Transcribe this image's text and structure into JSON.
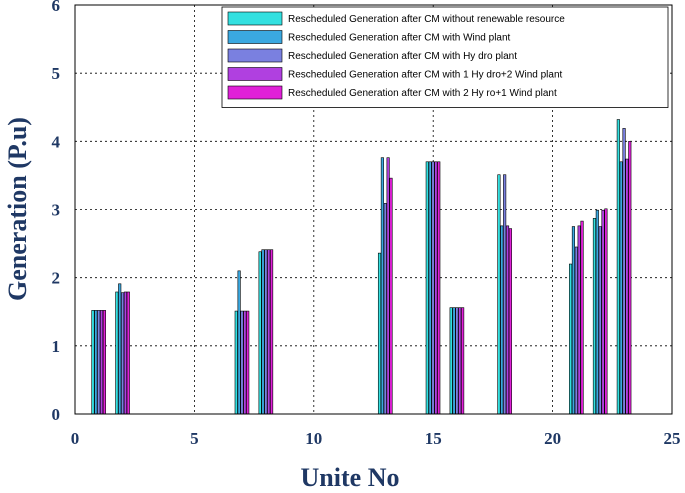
{
  "chart_data": {
    "type": "bar",
    "title": "",
    "xlabel": "Unite No",
    "ylabel": "Generation (P.u)",
    "xlim": [
      0,
      25
    ],
    "ylim": [
      0,
      6
    ],
    "x_ticks": [
      "0",
      "5",
      "10",
      "15",
      "20",
      "25"
    ],
    "y_ticks": [
      "0",
      "1",
      "2",
      "3",
      "4",
      "5",
      "6"
    ],
    "grid": true,
    "legend_position": "top-right",
    "units": [
      1,
      2,
      7,
      8,
      13,
      15,
      16,
      18,
      21,
      22,
      23
    ],
    "series": [
      {
        "name": "Rescheduled Generation after CM without renewable resource",
        "color": "#33e0e0",
        "values": [
          1.52,
          1.79,
          1.51,
          2.38,
          2.36,
          3.7,
          1.56,
          3.51,
          2.2,
          2.87,
          4.32
        ]
      },
      {
        "name": "Rescheduled Generation after CM with Wind plant",
        "color": "#3aa8e0",
        "values": [
          1.52,
          1.91,
          2.1,
          2.41,
          3.76,
          3.7,
          1.56,
          2.76,
          2.75,
          2.99,
          3.7
        ]
      },
      {
        "name": "Rescheduled Generation after CM with Hy dro plant",
        "color": "#7a80e0",
        "values": [
          1.52,
          1.78,
          1.51,
          2.41,
          3.09,
          3.7,
          1.56,
          3.51,
          2.45,
          2.75,
          4.19
        ]
      },
      {
        "name": "Rescheduled Generation after CM with 1 Hy dro+2 Wind plant",
        "color": "#b040e0",
        "values": [
          1.52,
          1.79,
          1.51,
          2.41,
          3.76,
          3.7,
          1.56,
          2.76,
          2.76,
          2.99,
          3.74
        ]
      },
      {
        "name": "Rescheduled Generation after CM with 2 Hy ro+1 Wind plant",
        "color": "#e020d8",
        "values": [
          1.52,
          1.79,
          1.51,
          2.41,
          3.46,
          3.7,
          1.56,
          2.72,
          2.83,
          3.01,
          4.0
        ]
      }
    ]
  }
}
